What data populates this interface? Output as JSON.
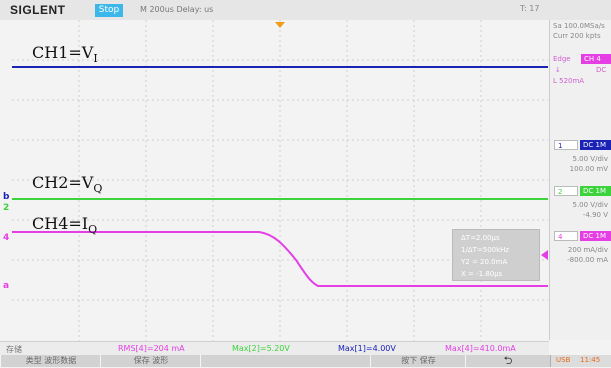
{
  "top_bar": {
    "brand": "SIGLENT",
    "run_state": "Stop",
    "timebase_info": "M 200us  Delay:   us",
    "trigger_time": "T: 17"
  },
  "trace_labels": {
    "ch1_main": "CH1=V",
    "ch1_sub": "I",
    "ch2_main": "CH2=V",
    "ch2_sub": "Q",
    "ch4_main": "CH4=I",
    "ch4_sub": "Q"
  },
  "channel_markers": {
    "ch1": "b",
    "ch2": "2",
    "ch4": "4",
    "ch4_ref": "a"
  },
  "measure_box": {
    "line1": "ΔT=2.00μs",
    "line2": "1/ΔT=500kHz",
    "line3": "Y2 = 20.0mA",
    "line4": "X = -1.80μs"
  },
  "right_panel": {
    "sample_rate": "Sa 100.0MSa/s",
    "memory": "Curr 200 kpts",
    "trigger_header": "Edge",
    "trigger_ch": "CH 4",
    "trigger_coupling": "DC",
    "trigger_slope": "↓",
    "trigger_level": "L  520mA",
    "ch1_header": "1",
    "ch1_tag": "DC 1M",
    "ch1_scale": "5.00 V/div",
    "ch1_offset": "100.00 mV",
    "ch2_header": "2",
    "ch2_tag": "DC 1M",
    "ch2_scale": "5.00 V/div",
    "ch2_offset": "-4.90 V",
    "ch4_header": "4",
    "ch4_tag": "DC 1M",
    "ch4_scale": "200 mA/div",
    "ch4_offset": "-800.00 mA"
  },
  "status_bar": {
    "state": "存储",
    "rms": "RMS[4]=204 mA",
    "max2": "Max[2]=5.20V",
    "max1": "Max[1]=4.00V",
    "max4": "Max[4]=410.0mA"
  },
  "softkeys": {
    "k1": "类型 波形数据",
    "k2": "保存 波形",
    "k4": "按下 保存",
    "k5_icon": "return-arrow",
    "usb": "USB",
    "time": "11:45"
  },
  "colors": {
    "ch1": "#1a23b5",
    "ch2": "#3cd33c",
    "ch4": "#e53ee5",
    "trigger": "#f29a1c",
    "accent": "#3cb7ea"
  }
}
